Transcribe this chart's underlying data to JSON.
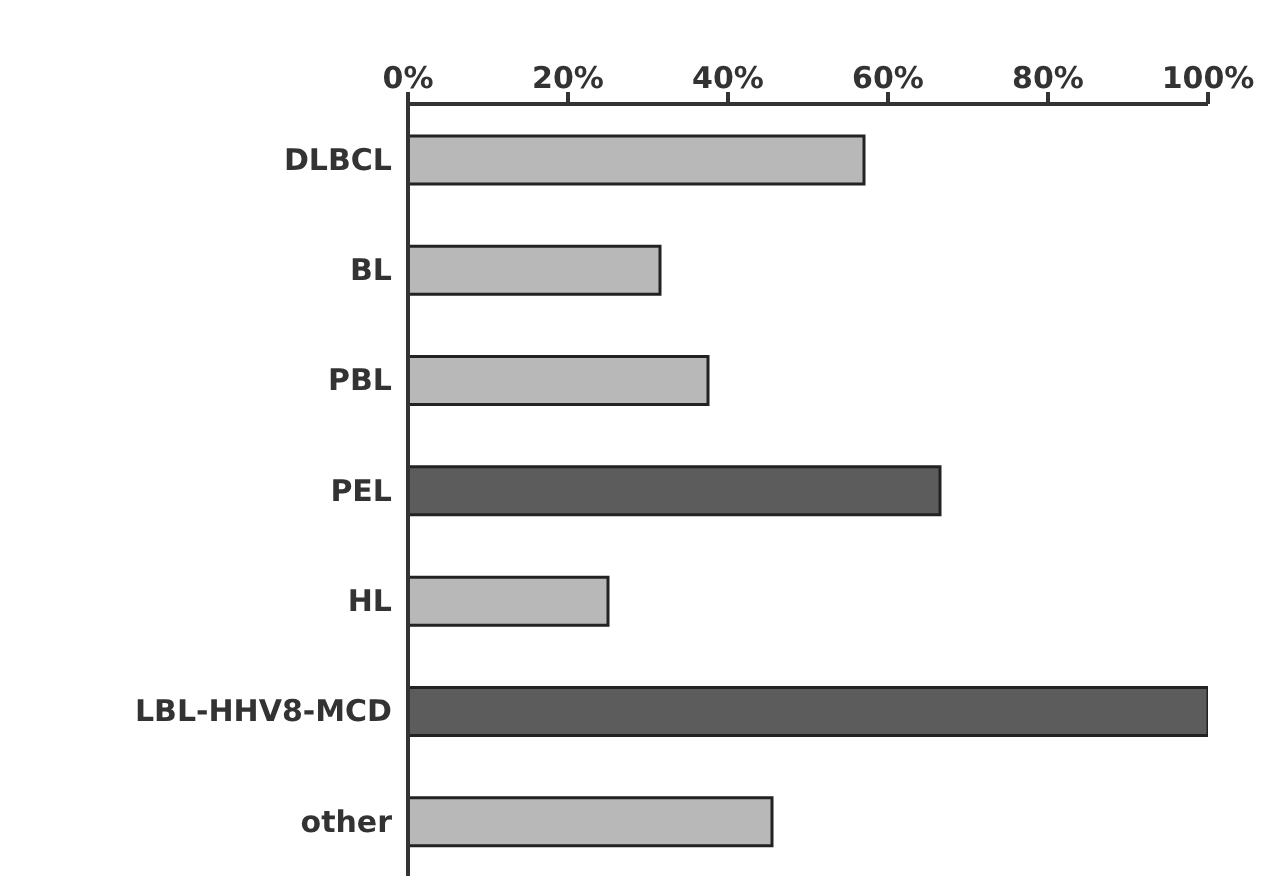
{
  "chart_data": {
    "type": "bar",
    "orientation": "horizontal",
    "categories": [
      "DLBCL",
      "BL",
      "PBL",
      "PEL",
      "HL",
      "LBL-HHV8-MCD",
      "other"
    ],
    "values": [
      57,
      31.5,
      37.5,
      66.5,
      25,
      100,
      45.5
    ],
    "colors": [
      "#b8b8b8",
      "#b8b8b8",
      "#b8b8b8",
      "#5c5c5c",
      "#b8b8b8",
      "#5c5c5c",
      "#b8b8b8"
    ],
    "xlim": [
      0,
      100
    ],
    "xticks": [
      {
        "value": 0,
        "label": "0%"
      },
      {
        "value": 20,
        "label": "20%"
      },
      {
        "value": 40,
        "label": "40%"
      },
      {
        "value": 60,
        "label": "60%"
      },
      {
        "value": 80,
        "label": "80%"
      },
      {
        "value": 100,
        "label": "100%"
      }
    ],
    "grid": false,
    "legend": false
  }
}
